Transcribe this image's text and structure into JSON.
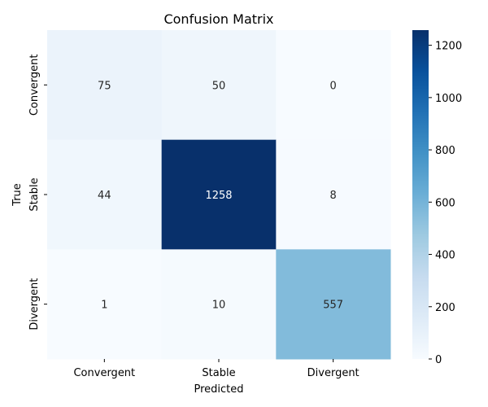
{
  "chart_data": {
    "type": "heatmap",
    "title": "Confusion Matrix",
    "xlabel": "Predicted",
    "ylabel": "True",
    "x_categories": [
      "Convergent",
      "Stable",
      "Divergent"
    ],
    "y_categories": [
      "Convergent",
      "Stable",
      "Divergent"
    ],
    "values": [
      [
        75,
        50,
        0
      ],
      [
        44,
        1258,
        8
      ],
      [
        1,
        10,
        557
      ]
    ],
    "colormap": "Blues",
    "vmin": 0,
    "vmax": 1258,
    "colorbar_ticks": [
      0,
      200,
      400,
      600,
      800,
      1000,
      1200
    ],
    "low_color": "#f7fbff",
    "high_color": "#08306b"
  }
}
